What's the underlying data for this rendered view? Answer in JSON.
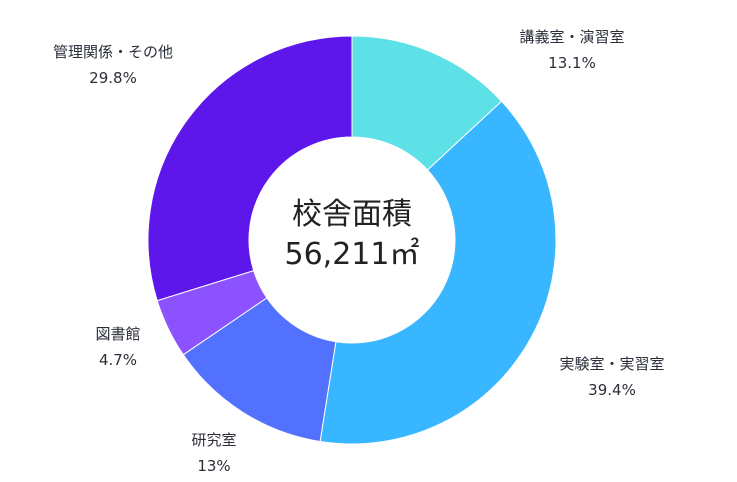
{
  "chart_data": {
    "type": "pie",
    "center_label": {
      "title": "校舎面積",
      "total": "56,211㎡"
    },
    "series": [
      {
        "name": "講義室・演習室",
        "value": 13.1,
        "label": "13.1%",
        "color": "#5de0e6"
      },
      {
        "name": "実験室・実習室",
        "value": 39.4,
        "label": "39.4%",
        "color": "#38b6ff"
      },
      {
        "name": "研究室",
        "value": 13.0,
        "label": "13%",
        "color": "#5271ff"
      },
      {
        "name": "図書館",
        "value": 4.7,
        "label": "4.7%",
        "color": "#8c52ff"
      },
      {
        "name": "管理関係・その他",
        "value": 29.8,
        "label": "29.8%",
        "color": "#5e17eb"
      }
    ]
  }
}
